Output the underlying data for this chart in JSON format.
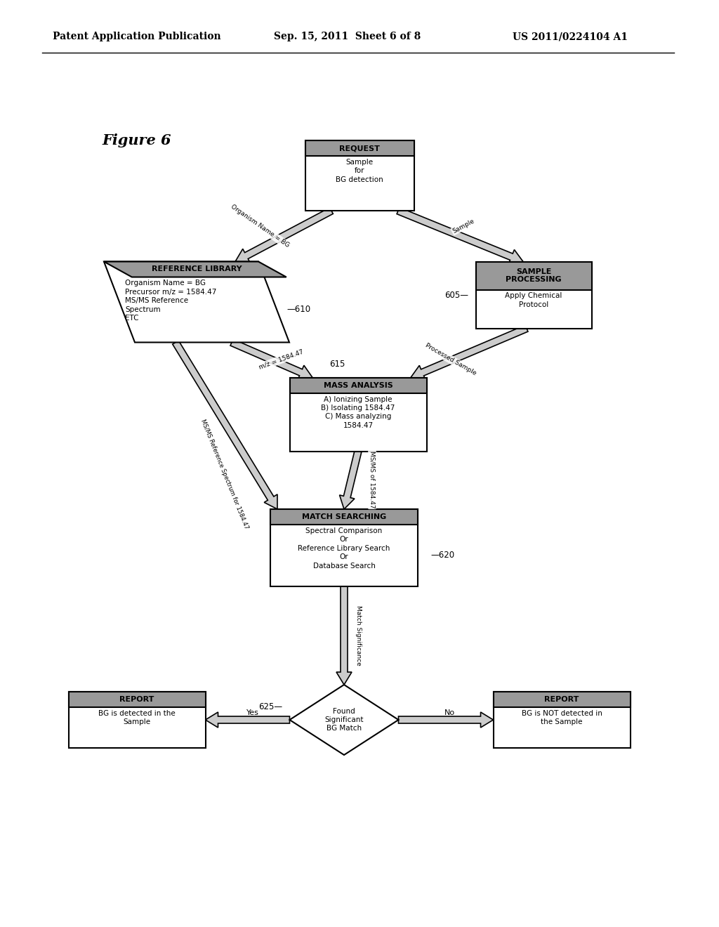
{
  "bg_color": "#ffffff",
  "header_left": "Patent Application Publication",
  "header_center": "Sep. 15, 2011  Sheet 6 of 8",
  "header_right": "US 2011/0224104 A1",
  "figure_label": "Figure 6"
}
